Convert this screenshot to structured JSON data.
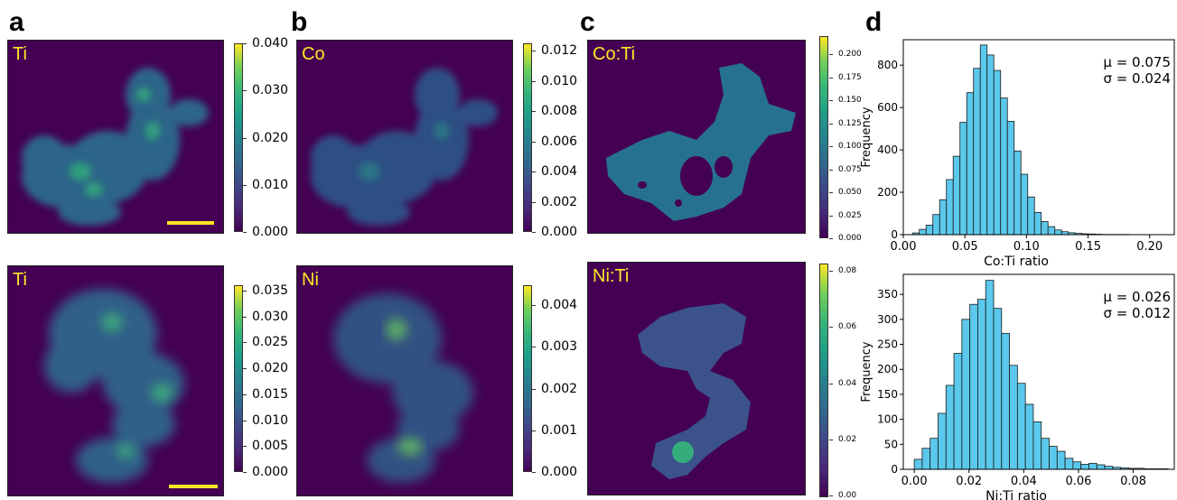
{
  "panels": {
    "a": "a",
    "b": "b",
    "c": "c",
    "d": "d"
  },
  "maps": {
    "ti_top": "Ti",
    "co": "Co",
    "coti": "Co:Ti",
    "ti_bottom": "Ti",
    "ni": "Ni",
    "niti": "Ni:Ti"
  },
  "colorbars": {
    "ti_top": [
      "0.040",
      "0.030",
      "0.020",
      "0.010",
      "0.000"
    ],
    "co": [
      "0.012",
      "0.010",
      "0.008",
      "0.006",
      "0.004",
      "0.002",
      "0.000"
    ],
    "coti": [
      "0.200",
      "0.175",
      "0.150",
      "0.125",
      "0.100",
      "0.075",
      "0.050",
      "0.025",
      "0.000"
    ],
    "ti_bottom": [
      "0.035",
      "0.030",
      "0.025",
      "0.020",
      "0.015",
      "0.010",
      "0.005",
      "0.000"
    ],
    "ni": [
      "0.004",
      "0.003",
      "0.002",
      "0.001",
      "0.000"
    ],
    "niti": [
      "0.08",
      "0.06",
      "0.04",
      "0.02",
      "0.00"
    ]
  },
  "colors": {
    "bar_fill": "#5bc8ec",
    "bar_edge": "#1a1a1a",
    "map_bg": "#440154",
    "label": "#fde725"
  },
  "chart_data": [
    {
      "type": "bar",
      "xlabel": "Co:Ti ratio",
      "ylabel": "Frequency",
      "xlim": [
        0,
        0.22
      ],
      "ylim": [
        0,
        920
      ],
      "xticks": [
        "0.00",
        "0.05",
        "0.10",
        "0.15",
        "0.20"
      ],
      "yticks": [
        "0",
        "200",
        "400",
        "600",
        "800"
      ],
      "bin_start": 0.0075,
      "bin_width": 0.0055,
      "values": [
        8,
        25,
        45,
        95,
        165,
        260,
        370,
        530,
        670,
        785,
        895,
        848,
        775,
        645,
        535,
        395,
        285,
        178,
        105,
        62,
        38,
        22,
        14,
        9,
        6,
        4,
        3,
        2,
        1,
        1,
        1,
        1
      ],
      "stats": {
        "mu": "μ = 0.075",
        "sigma": "σ = 0.024"
      }
    },
    {
      "type": "bar",
      "xlabel": "Ni:Ti ratio",
      "ylabel": "Frequency",
      "xlim": [
        -0.004,
        0.095
      ],
      "ylim": [
        0,
        390
      ],
      "xticks": [
        "0.00",
        "0.02",
        "0.04",
        "0.06",
        "0.08"
      ],
      "yticks": [
        "0",
        "50",
        "100",
        "150",
        "200",
        "250",
        "300",
        "350"
      ],
      "bin_start": 0.0,
      "bin_width": 0.0029,
      "values": [
        20,
        42,
        62,
        112,
        168,
        232,
        300,
        330,
        340,
        378,
        322,
        272,
        208,
        172,
        130,
        95,
        62,
        46,
        36,
        22,
        15,
        10,
        12,
        9,
        6,
        4,
        3,
        2,
        2,
        1,
        1,
        1
      ],
      "stats": {
        "mu": "μ = 0.026",
        "sigma": "σ = 0.012"
      }
    }
  ]
}
